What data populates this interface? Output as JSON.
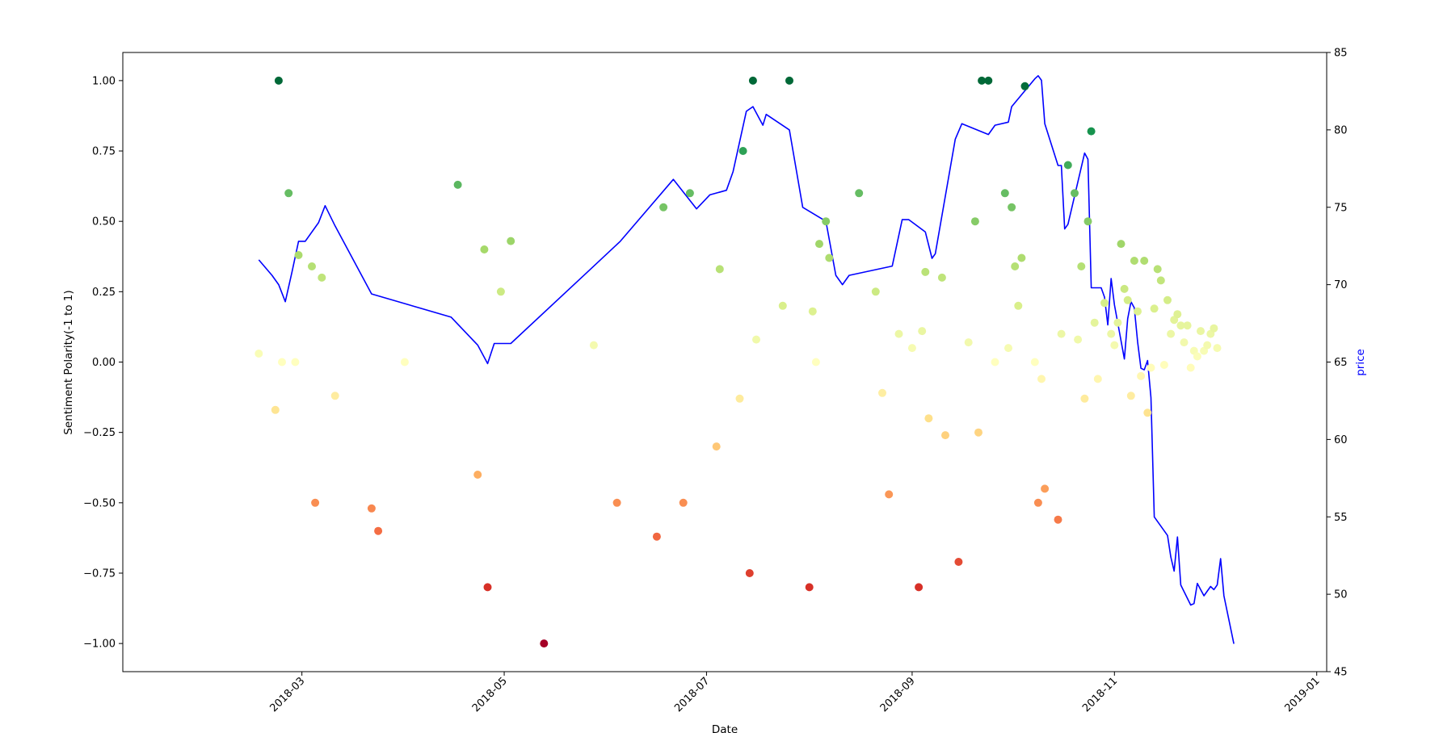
{
  "chart_data": {
    "type": "scatter",
    "title": "",
    "xlabel": "Date",
    "ylabel_left": "Sentiment Polarity(-1 to 1)",
    "ylabel_right": "price",
    "ylim_left": [
      -1.1,
      1.1
    ],
    "ylim_right": [
      45,
      85
    ],
    "xlim": [
      "2018-01-06",
      "2019-01-04"
    ],
    "grid": false,
    "legend": "none",
    "colormap": "RdYlGn",
    "price_line_color": "#0000ff",
    "left_ticks": [
      {
        "value": 1.0,
        "label": "1.00"
      },
      {
        "value": 0.75,
        "label": "0.75"
      },
      {
        "value": 0.5,
        "label": "0.50"
      },
      {
        "value": 0.25,
        "label": "0.25"
      },
      {
        "value": 0.0,
        "label": "0.00"
      },
      {
        "value": -0.25,
        "label": "−0.25"
      },
      {
        "value": -0.5,
        "label": "−0.50"
      },
      {
        "value": -0.75,
        "label": "−0.75"
      },
      {
        "value": -1.0,
        "label": "−1.00"
      }
    ],
    "right_ticks": [
      {
        "value": 85,
        "label": "85"
      },
      {
        "value": 80,
        "label": "80"
      },
      {
        "value": 75,
        "label": "75"
      },
      {
        "value": 70,
        "label": "70"
      },
      {
        "value": 65,
        "label": "65"
      },
      {
        "value": 60,
        "label": "60"
      },
      {
        "value": 55,
        "label": "55"
      },
      {
        "value": 50,
        "label": "50"
      },
      {
        "value": 45,
        "label": "45"
      }
    ],
    "x_ticks": [
      {
        "date": "2018-03-01",
        "label": "2018-03"
      },
      {
        "date": "2018-05-01",
        "label": "2018-05"
      },
      {
        "date": "2018-07-01",
        "label": "2018-07"
      },
      {
        "date": "2018-09-01",
        "label": "2018-09"
      },
      {
        "date": "2018-11-01",
        "label": "2018-11"
      },
      {
        "date": "2019-01-01",
        "label": "2019-01"
      }
    ],
    "sentiment_points": [
      [
        "2018-02-16",
        0.03
      ],
      [
        "2018-02-21",
        -0.17
      ],
      [
        "2018-02-22",
        1.0
      ],
      [
        "2018-02-23",
        0.0
      ],
      [
        "2018-02-25",
        0.6
      ],
      [
        "2018-02-27",
        0.0
      ],
      [
        "2018-02-28",
        0.38
      ],
      [
        "2018-03-04",
        0.34
      ],
      [
        "2018-03-05",
        -0.5
      ],
      [
        "2018-03-07",
        0.3
      ],
      [
        "2018-03-11",
        -0.12
      ],
      [
        "2018-03-22",
        -0.52
      ],
      [
        "2018-03-24",
        -0.6
      ],
      [
        "2018-04-01",
        0.0
      ],
      [
        "2018-04-17",
        0.63
      ],
      [
        "2018-04-23",
        -0.4
      ],
      [
        "2018-04-25",
        0.4
      ],
      [
        "2018-04-26",
        -0.8
      ],
      [
        "2018-04-30",
        0.25
      ],
      [
        "2018-05-03",
        0.43
      ],
      [
        "2018-05-13",
        -1.0
      ],
      [
        "2018-05-28",
        0.06
      ],
      [
        "2018-06-04",
        -0.5
      ],
      [
        "2018-06-16",
        -0.62
      ],
      [
        "2018-06-18",
        0.55
      ],
      [
        "2018-06-24",
        -0.5
      ],
      [
        "2018-06-26",
        0.6
      ],
      [
        "2018-07-04",
        -0.3
      ],
      [
        "2018-07-05",
        0.33
      ],
      [
        "2018-07-11",
        -0.13
      ],
      [
        "2018-07-12",
        0.75
      ],
      [
        "2018-07-14",
        -0.75
      ],
      [
        "2018-07-15",
        1.0
      ],
      [
        "2018-07-16",
        0.08
      ],
      [
        "2018-07-24",
        0.2
      ],
      [
        "2018-07-26",
        1.0
      ],
      [
        "2018-08-01",
        -0.8
      ],
      [
        "2018-08-02",
        0.18
      ],
      [
        "2018-08-03",
        0.0
      ],
      [
        "2018-08-04",
        0.42
      ],
      [
        "2018-08-06",
        0.5
      ],
      [
        "2018-08-07",
        0.37
      ],
      [
        "2018-08-16",
        0.6
      ],
      [
        "2018-08-21",
        0.25
      ],
      [
        "2018-08-23",
        -0.11
      ],
      [
        "2018-08-25",
        -0.47
      ],
      [
        "2018-08-28",
        0.1
      ],
      [
        "2018-09-01",
        0.05
      ],
      [
        "2018-09-03",
        -0.8
      ],
      [
        "2018-09-04",
        0.11
      ],
      [
        "2018-09-05",
        0.32
      ],
      [
        "2018-09-06",
        -0.2
      ],
      [
        "2018-09-10",
        0.3
      ],
      [
        "2018-09-11",
        -0.26
      ],
      [
        "2018-09-15",
        -0.71
      ],
      [
        "2018-09-18",
        0.07
      ],
      [
        "2018-09-20",
        0.5
      ],
      [
        "2018-09-21",
        -0.25
      ],
      [
        "2018-09-22",
        1.0
      ],
      [
        "2018-09-24",
        1.0
      ],
      [
        "2018-09-26",
        0.0
      ],
      [
        "2018-09-29",
        0.6
      ],
      [
        "2018-09-30",
        0.05
      ],
      [
        "2018-10-01",
        0.55
      ],
      [
        "2018-10-02",
        0.34
      ],
      [
        "2018-10-03",
        0.2
      ],
      [
        "2018-10-04",
        0.37
      ],
      [
        "2018-10-05",
        0.98
      ],
      [
        "2018-10-08",
        0.0
      ],
      [
        "2018-10-09",
        -0.5
      ],
      [
        "2018-10-10",
        -0.06
      ],
      [
        "2018-10-11",
        -0.45
      ],
      [
        "2018-10-15",
        -0.56
      ],
      [
        "2018-10-16",
        0.1
      ],
      [
        "2018-10-18",
        0.7
      ],
      [
        "2018-10-20",
        0.6
      ],
      [
        "2018-10-21",
        0.08
      ],
      [
        "2018-10-22",
        0.34
      ],
      [
        "2018-10-23",
        -0.13
      ],
      [
        "2018-10-24",
        0.5
      ],
      [
        "2018-10-25",
        0.82
      ],
      [
        "2018-10-26",
        0.14
      ],
      [
        "2018-10-27",
        -0.06
      ],
      [
        "2018-10-29",
        0.21
      ],
      [
        "2018-10-31",
        0.1
      ],
      [
        "2018-11-01",
        0.06
      ],
      [
        "2018-11-02",
        0.14
      ],
      [
        "2018-11-03",
        0.42
      ],
      [
        "2018-11-04",
        0.26
      ],
      [
        "2018-11-05",
        0.22
      ],
      [
        "2018-11-06",
        -0.12
      ],
      [
        "2018-11-07",
        0.36
      ],
      [
        "2018-11-08",
        0.18
      ],
      [
        "2018-11-09",
        -0.05
      ],
      [
        "2018-11-10",
        0.36
      ],
      [
        "2018-11-11",
        -0.18
      ],
      [
        "2018-11-12",
        -0.02
      ],
      [
        "2018-11-13",
        0.19
      ],
      [
        "2018-11-14",
        0.33
      ],
      [
        "2018-11-15",
        0.29
      ],
      [
        "2018-11-16",
        -0.01
      ],
      [
        "2018-11-17",
        0.22
      ],
      [
        "2018-11-18",
        0.1
      ],
      [
        "2018-11-19",
        0.15
      ],
      [
        "2018-11-20",
        0.17
      ],
      [
        "2018-11-21",
        0.13
      ],
      [
        "2018-11-22",
        0.07
      ],
      [
        "2018-11-23",
        0.13
      ],
      [
        "2018-11-24",
        -0.02
      ],
      [
        "2018-11-25",
        0.04
      ],
      [
        "2018-11-26",
        0.02
      ],
      [
        "2018-11-27",
        0.11
      ],
      [
        "2018-11-28",
        0.04
      ],
      [
        "2018-11-29",
        0.06
      ],
      [
        "2018-11-30",
        0.1
      ],
      [
        "2018-12-01",
        0.12
      ],
      [
        "2018-12-02",
        0.05
      ]
    ],
    "price_series": {
      "name": "price",
      "points": [
        [
          "2018-02-16",
          71.6
        ],
        [
          "2018-02-20",
          70.6
        ],
        [
          "2018-02-22",
          70.0
        ],
        [
          "2018-02-24",
          68.9
        ],
        [
          "2018-02-26",
          70.8
        ],
        [
          "2018-02-28",
          72.8
        ],
        [
          "2018-03-02",
          72.8
        ],
        [
          "2018-03-06",
          74.0
        ],
        [
          "2018-03-08",
          75.1
        ],
        [
          "2018-03-11",
          73.8
        ],
        [
          "2018-03-22",
          69.4
        ],
        [
          "2018-04-15",
          67.9
        ],
        [
          "2018-04-23",
          66.1
        ],
        [
          "2018-04-26",
          64.9
        ],
        [
          "2018-04-28",
          66.2
        ],
        [
          "2018-05-03",
          66.2
        ],
        [
          "2018-05-26",
          70.8
        ],
        [
          "2018-06-05",
          72.8
        ],
        [
          "2018-06-21",
          76.8
        ],
        [
          "2018-06-28",
          74.9
        ],
        [
          "2018-07-02",
          75.8
        ],
        [
          "2018-07-07",
          76.1
        ],
        [
          "2018-07-09",
          77.3
        ],
        [
          "2018-07-13",
          81.2
        ],
        [
          "2018-07-15",
          81.5
        ],
        [
          "2018-07-18",
          80.3
        ],
        [
          "2018-07-19",
          81.0
        ],
        [
          "2018-07-26",
          80.0
        ],
        [
          "2018-07-30",
          75.0
        ],
        [
          "2018-08-06",
          74.1
        ],
        [
          "2018-08-09",
          70.6
        ],
        [
          "2018-08-11",
          70.0
        ],
        [
          "2018-08-13",
          70.6
        ],
        [
          "2018-08-26",
          71.2
        ],
        [
          "2018-08-29",
          74.2
        ],
        [
          "2018-08-31",
          74.2
        ],
        [
          "2018-09-05",
          73.4
        ],
        [
          "2018-09-07",
          71.7
        ],
        [
          "2018-09-08",
          72.0
        ],
        [
          "2018-09-14",
          79.4
        ],
        [
          "2018-09-16",
          80.4
        ],
        [
          "2018-09-24",
          79.7
        ],
        [
          "2018-09-26",
          80.3
        ],
        [
          "2018-09-30",
          80.5
        ],
        [
          "2018-10-01",
          81.5
        ],
        [
          "2018-10-08",
          83.3
        ],
        [
          "2018-10-09",
          83.5
        ],
        [
          "2018-10-10",
          83.2
        ],
        [
          "2018-10-11",
          80.4
        ],
        [
          "2018-10-15",
          77.7
        ],
        [
          "2018-10-16",
          77.7
        ],
        [
          "2018-10-17",
          73.6
        ],
        [
          "2018-10-18",
          73.9
        ],
        [
          "2018-10-23",
          78.5
        ],
        [
          "2018-10-24",
          78.1
        ],
        [
          "2018-10-25",
          69.8
        ],
        [
          "2018-10-28",
          69.8
        ],
        [
          "2018-10-29",
          69.2
        ],
        [
          "2018-10-30",
          67.4
        ],
        [
          "2018-10-31",
          70.4
        ],
        [
          "2018-11-01",
          68.7
        ],
        [
          "2018-11-04",
          65.2
        ],
        [
          "2018-11-05",
          67.8
        ],
        [
          "2018-11-06",
          68.9
        ],
        [
          "2018-11-07",
          68.5
        ],
        [
          "2018-11-08",
          66.3
        ],
        [
          "2018-11-09",
          64.6
        ],
        [
          "2018-11-10",
          64.5
        ],
        [
          "2018-11-11",
          65.1
        ],
        [
          "2018-11-12",
          62.7
        ],
        [
          "2018-11-13",
          55.0
        ],
        [
          "2018-11-15",
          54.4
        ],
        [
          "2018-11-17",
          53.8
        ],
        [
          "2018-11-18",
          52.4
        ],
        [
          "2018-11-19",
          51.5
        ],
        [
          "2018-11-20",
          53.7
        ],
        [
          "2018-11-21",
          50.6
        ],
        [
          "2018-11-24",
          49.3
        ],
        [
          "2018-11-25",
          49.4
        ],
        [
          "2018-11-26",
          50.7
        ],
        [
          "2018-11-28",
          49.9
        ],
        [
          "2018-11-30",
          50.5
        ],
        [
          "2018-12-01",
          50.3
        ],
        [
          "2018-12-02",
          50.6
        ],
        [
          "2018-12-03",
          52.3
        ],
        [
          "2018-12-04",
          49.9
        ],
        [
          "2018-12-07",
          46.8
        ]
      ]
    }
  }
}
